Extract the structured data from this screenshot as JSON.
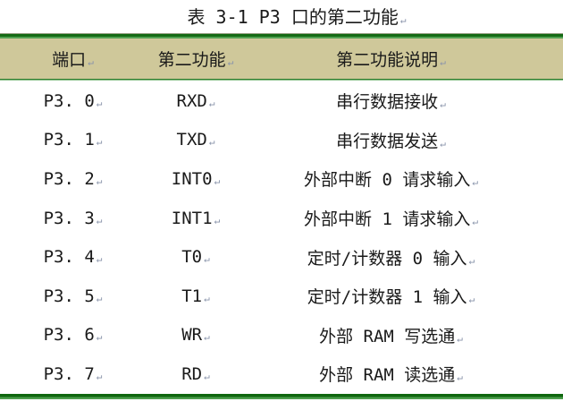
{
  "title": {
    "text": "表 3-1 P3 口的第二功能"
  },
  "marks": {
    "cell_mark": "↵"
  },
  "colors": {
    "header_bg": "#cfc89a",
    "border_dark_green": "#146a14",
    "border_light_green": "#52a052",
    "text": "#1a1a1a",
    "formatting_mark": "#8893aa"
  },
  "table": {
    "headers": {
      "port": "端口",
      "function": "第二功能",
      "description": "第二功能说明"
    },
    "rows": [
      {
        "port": "P3. 0",
        "function": "RXD",
        "description": "串行数据接收"
      },
      {
        "port": "P3. 1",
        "function": "TXD",
        "description": "串行数据发送"
      },
      {
        "port": "P3. 2",
        "function": "INT0",
        "description": "外部中断 0 请求输入"
      },
      {
        "port": "P3. 3",
        "function": "INT1",
        "description": "外部中断 1 请求输入"
      },
      {
        "port": "P3. 4",
        "function": "T0",
        "description": "定时/计数器 0 输入"
      },
      {
        "port": "P3. 5",
        "function": "T1",
        "description": "定时/计数器 1 输入"
      },
      {
        "port": "P3. 6",
        "function": "WR",
        "description": "外部 RAM 写选通"
      },
      {
        "port": "P3. 7",
        "function": "RD",
        "description": "外部 RAM 读选通"
      }
    ]
  }
}
